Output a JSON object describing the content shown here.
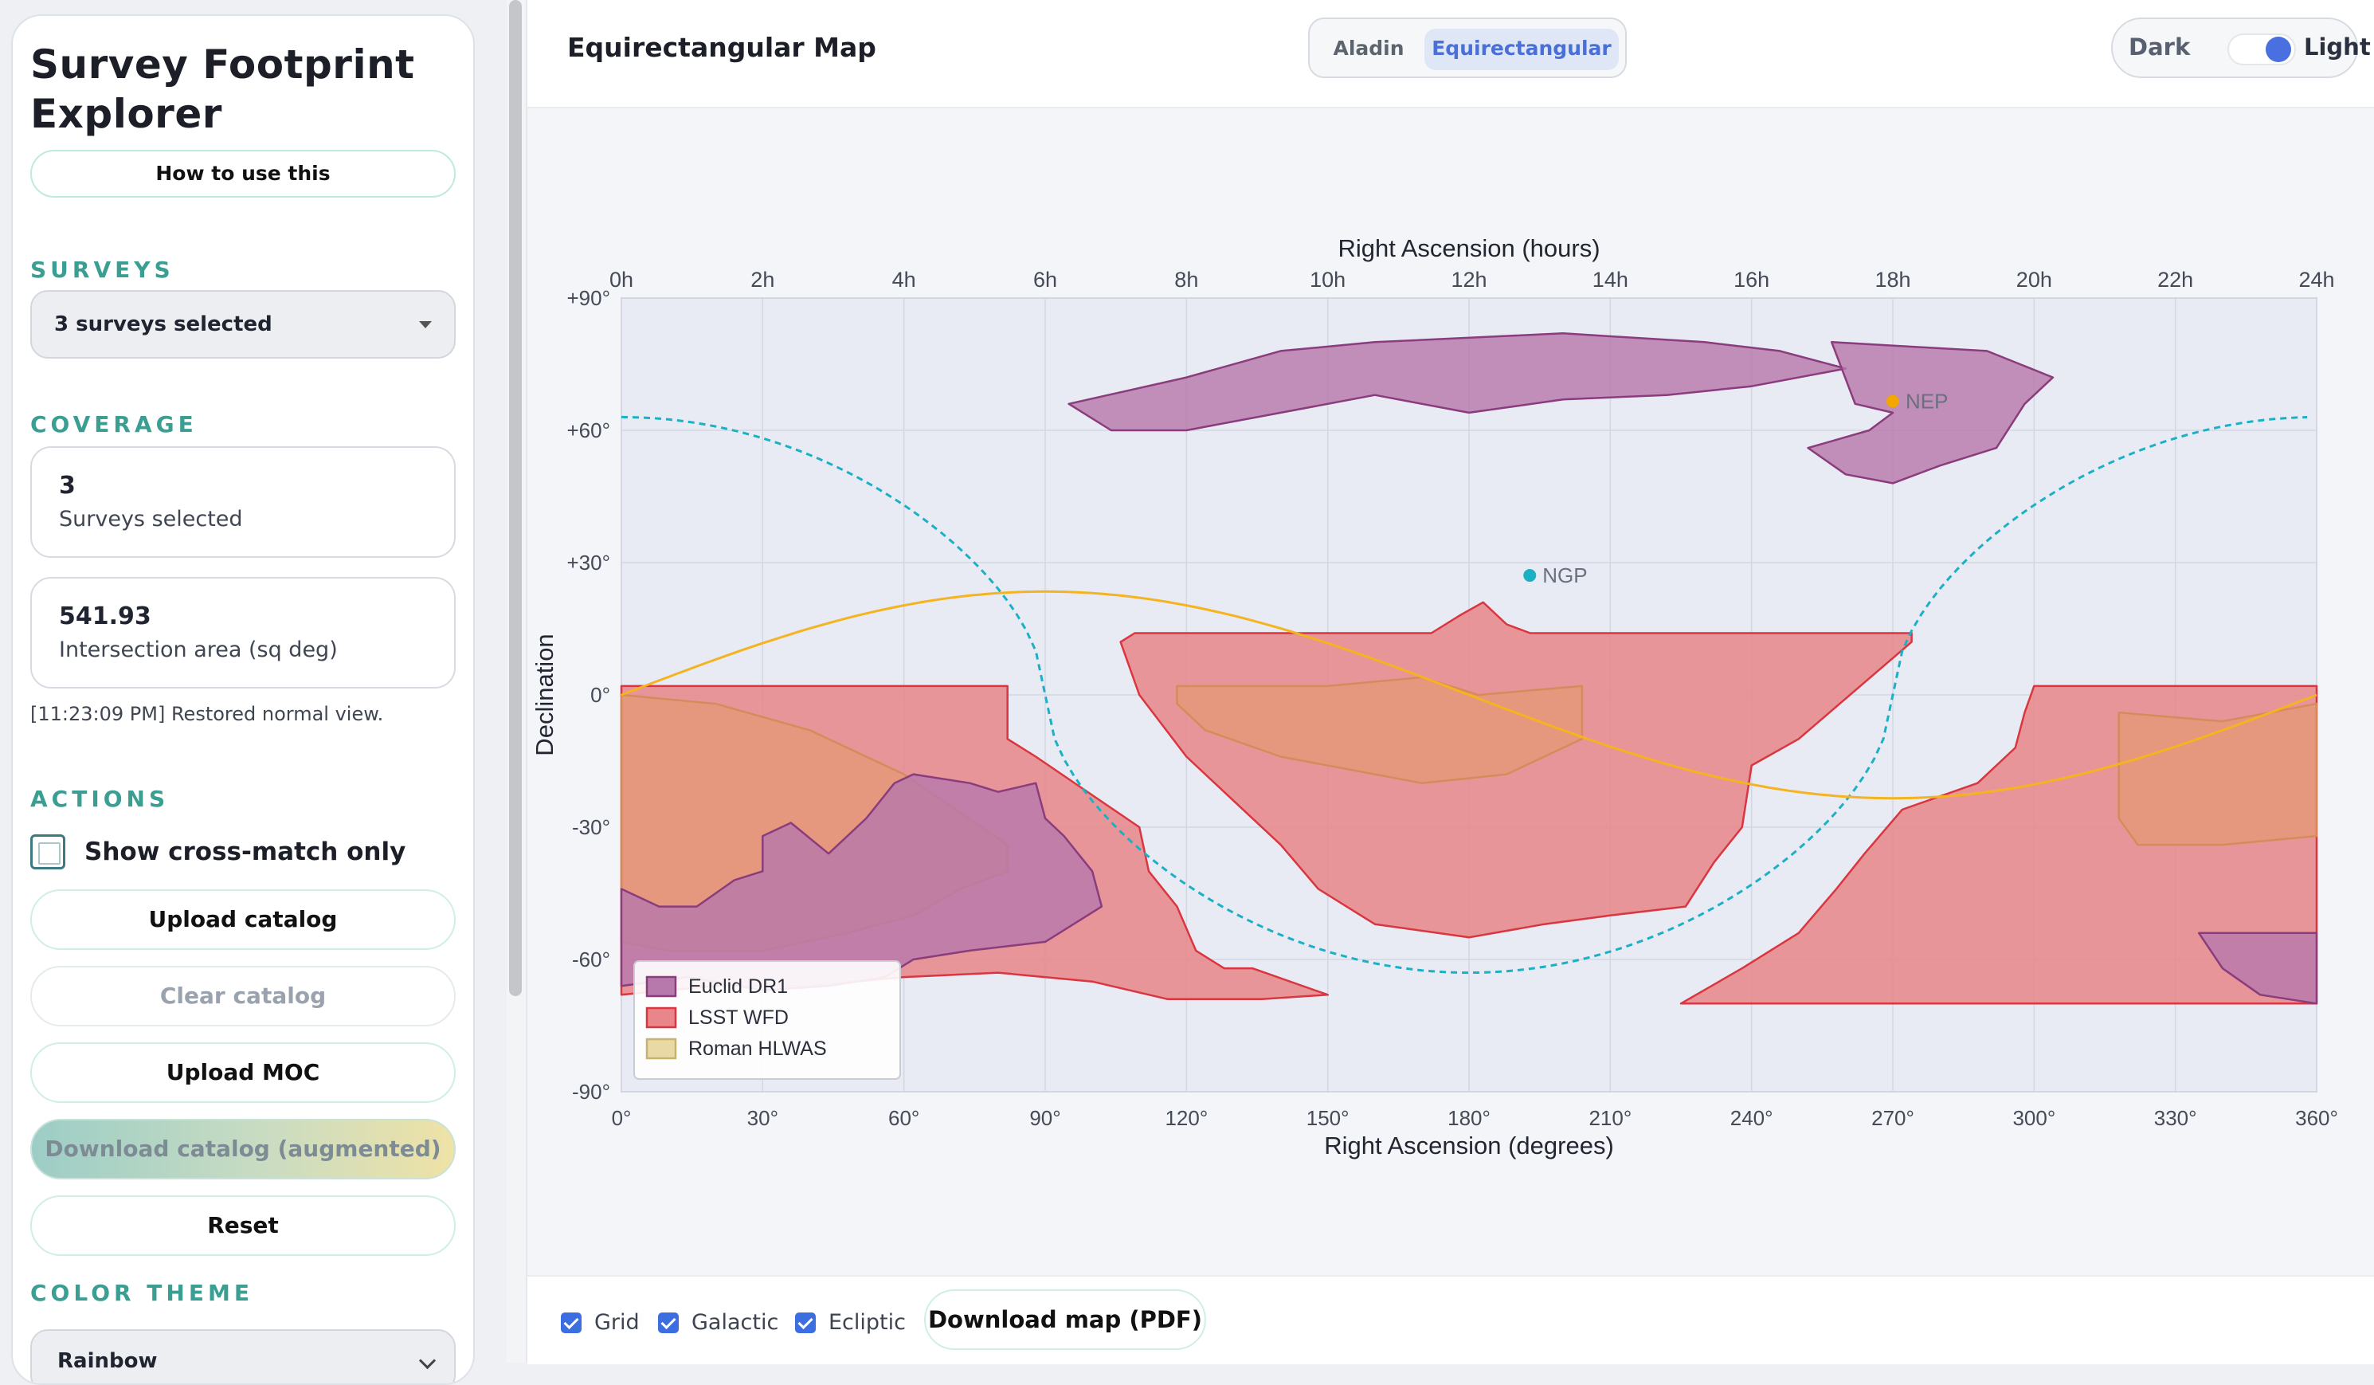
{
  "sidebar": {
    "title": "Survey Footprint Explorer",
    "help_button": "How to use this",
    "surveys_heading": "SURVEYS",
    "surveys_select": "3 surveys selected",
    "coverage_heading": "COVERAGE",
    "coverage_cards": [
      {
        "value": "3",
        "label": "Surveys selected"
      },
      {
        "value": "541.93",
        "label": "Intersection area (sq deg)"
      }
    ],
    "log_message": "[11:23:09 PM] Restored normal view.",
    "actions_heading": "ACTIONS",
    "crossmatch_label": "Show cross-match only",
    "crossmatch_checked": false,
    "buttons": {
      "upload_catalog": "Upload catalog",
      "clear_catalog": "Clear catalog",
      "upload_moc": "Upload MOC",
      "download_catalog": "Download catalog (augmented)",
      "reset": "Reset"
    },
    "color_theme_heading": "COLOR THEME",
    "color_theme_value": "Rainbow"
  },
  "main": {
    "title": "Equirectangular Map",
    "view_tabs": [
      {
        "label": "Aladin",
        "active": false
      },
      {
        "label": "Equirectangular",
        "active": true
      }
    ],
    "theme_toggle": {
      "dark": "Dark",
      "light": "Light",
      "state": "Light"
    },
    "bottom": {
      "grid": "Grid",
      "galactic": "Galactic",
      "ecliptic": "Ecliptic",
      "grid_checked": true,
      "galactic_checked": true,
      "ecliptic_checked": true,
      "download_map": "Download map (PDF)"
    }
  },
  "chart_data": {
    "type": "map",
    "top_axis_label": "Right Ascension (hours)",
    "xlabel": "Right Ascension (degrees)",
    "ylabel": "Declination",
    "xlim": [
      0,
      360
    ],
    "ylim": [
      -90,
      90
    ],
    "x_ticks": [
      "0°",
      "30°",
      "60°",
      "90°",
      "120°",
      "150°",
      "180°",
      "210°",
      "240°",
      "270°",
      "300°",
      "330°",
      "360°"
    ],
    "x_tick_values": [
      0,
      30,
      60,
      90,
      120,
      150,
      180,
      210,
      240,
      270,
      300,
      330,
      360
    ],
    "hour_ticks": [
      "0h",
      "2h",
      "4h",
      "6h",
      "8h",
      "10h",
      "12h",
      "14h",
      "16h",
      "18h",
      "20h",
      "22h",
      "24h"
    ],
    "hour_tick_values": [
      0,
      30,
      60,
      90,
      120,
      150,
      180,
      210,
      240,
      270,
      300,
      330,
      360
    ],
    "y_ticks": [
      "+90°",
      "+60°",
      "+30°",
      "0°",
      "-30°",
      "-60°",
      "-90°"
    ],
    "y_tick_values": [
      90,
      60,
      30,
      0,
      -30,
      -60,
      -90
    ],
    "legend": [
      {
        "name": "Euclid DR1",
        "fill": "#b779ab",
        "stroke": "#8a3c7c"
      },
      {
        "name": "LSST WFD",
        "fill": "#e8868a",
        "stroke": "#d9363f"
      },
      {
        "name": "Roman HLWAS",
        "fill": "#e9d9a4",
        "stroke": "#c8b272"
      }
    ],
    "legend_position": "bottom-left",
    "grid": true,
    "points": [
      {
        "name": "NGP",
        "ra": 192.9,
        "dec": 27.1,
        "color": "#1bb0c4"
      },
      {
        "name": "NEP",
        "ra": 270.0,
        "dec": 66.6,
        "color": "#f2a800"
      }
    ],
    "galactic_plane_color": "#1bb0c4",
    "ecliptic_color": "#f5b320",
    "survey_polygons": [
      {
        "survey": "LSST WFD",
        "points": [
          [
            0,
            2
          ],
          [
            82,
            2
          ],
          [
            82,
            -10
          ],
          [
            88,
            -14
          ],
          [
            110,
            -30
          ],
          [
            112,
            -40
          ],
          [
            118,
            -48
          ],
          [
            122,
            -58
          ],
          [
            128,
            -62
          ],
          [
            134,
            -62
          ],
          [
            150,
            -68
          ],
          [
            136,
            -69
          ],
          [
            116,
            -69
          ],
          [
            100,
            -65
          ],
          [
            80,
            -63
          ],
          [
            60,
            -64
          ],
          [
            40,
            -66
          ],
          [
            20,
            -66
          ],
          [
            0,
            -68
          ]
        ]
      },
      {
        "survey": "LSST WFD",
        "points": [
          [
            109,
            14
          ],
          [
            172,
            14
          ],
          [
            178,
            18
          ],
          [
            183,
            21
          ],
          [
            188,
            16
          ],
          [
            193,
            14
          ],
          [
            274,
            14
          ],
          [
            274,
            12
          ],
          [
            250,
            -10
          ],
          [
            240,
            -16
          ],
          [
            238,
            -30
          ],
          [
            232,
            -38
          ],
          [
            226,
            -48
          ],
          [
            210,
            -50
          ],
          [
            196,
            -52
          ],
          [
            180,
            -55
          ],
          [
            160,
            -52
          ],
          [
            148,
            -44
          ],
          [
            140,
            -34
          ],
          [
            130,
            -24
          ],
          [
            120,
            -14
          ],
          [
            110,
            0
          ],
          [
            106,
            12
          ]
        ]
      },
      {
        "survey": "LSST WFD",
        "points": [
          [
            300,
            2
          ],
          [
            360,
            2
          ],
          [
            360,
            -70
          ],
          [
            225,
            -70
          ],
          [
            238,
            -62
          ],
          [
            250,
            -54
          ],
          [
            258,
            -44
          ],
          [
            264,
            -36
          ],
          [
            272,
            -26
          ],
          [
            288,
            -20
          ],
          [
            296,
            -12
          ],
          [
            298,
            -4
          ]
        ]
      },
      {
        "survey": "Roman HLWAS",
        "points": [
          [
            0,
            0
          ],
          [
            20,
            -2
          ],
          [
            40,
            -8
          ],
          [
            60,
            -18
          ],
          [
            82,
            -34
          ],
          [
            82,
            -40
          ],
          [
            72,
            -44
          ],
          [
            62,
            -50
          ],
          [
            48,
            -54
          ],
          [
            30,
            -58
          ],
          [
            10,
            -58
          ],
          [
            0,
            -56
          ]
        ]
      },
      {
        "survey": "Roman HLWAS",
        "points": [
          [
            118,
            2
          ],
          [
            150,
            2
          ],
          [
            170,
            4
          ],
          [
            182,
            0
          ],
          [
            204,
            2
          ],
          [
            204,
            -10
          ],
          [
            188,
            -18
          ],
          [
            170,
            -20
          ],
          [
            140,
            -14
          ],
          [
            124,
            -8
          ],
          [
            118,
            -2
          ]
        ]
      },
      {
        "survey": "Roman HLWAS",
        "points": [
          [
            318,
            -4
          ],
          [
            340,
            -6
          ],
          [
            360,
            -2
          ],
          [
            360,
            -32
          ],
          [
            340,
            -34
          ],
          [
            322,
            -34
          ],
          [
            318,
            -28
          ]
        ]
      },
      {
        "survey": "Euclid DR1",
        "points": [
          [
            30,
            -32
          ],
          [
            36,
            -29
          ],
          [
            44,
            -36
          ],
          [
            52,
            -28
          ],
          [
            58,
            -20
          ],
          [
            62,
            -18
          ],
          [
            74,
            -20
          ],
          [
            80,
            -22
          ],
          [
            88,
            -20
          ],
          [
            90,
            -28
          ],
          [
            94,
            -32
          ],
          [
            100,
            -40
          ],
          [
            102,
            -48
          ],
          [
            90,
            -56
          ],
          [
            74,
            -58
          ],
          [
            62,
            -60
          ],
          [
            56,
            -64
          ],
          [
            44,
            -66
          ],
          [
            30,
            -67
          ],
          [
            14,
            -64
          ],
          [
            0,
            -66
          ],
          [
            0,
            -44
          ],
          [
            8,
            -48
          ],
          [
            16,
            -48
          ],
          [
            24,
            -42
          ],
          [
            30,
            -40
          ]
        ]
      },
      {
        "survey": "Euclid DR1",
        "points": [
          [
            335,
            -54
          ],
          [
            360,
            -54
          ],
          [
            360,
            -70
          ],
          [
            348,
            -68
          ],
          [
            340,
            -62
          ]
        ]
      },
      {
        "survey": "Euclid DR1",
        "points": [
          [
            95,
            66
          ],
          [
            120,
            72
          ],
          [
            140,
            78
          ],
          [
            160,
            80
          ],
          [
            200,
            82
          ],
          [
            230,
            80
          ],
          [
            246,
            78
          ],
          [
            260,
            74
          ],
          [
            240,
            70
          ],
          [
            222,
            68
          ],
          [
            200,
            67
          ],
          [
            180,
            64
          ],
          [
            160,
            68
          ],
          [
            140,
            64
          ],
          [
            120,
            60
          ],
          [
            104,
            60
          ]
        ]
      },
      {
        "survey": "Euclid DR1",
        "points": [
          [
            257,
            80
          ],
          [
            290,
            78
          ],
          [
            304,
            72
          ],
          [
            298,
            66
          ],
          [
            292,
            56
          ],
          [
            280,
            52
          ],
          [
            270,
            48
          ],
          [
            260,
            50
          ],
          [
            252,
            56
          ],
          [
            265,
            60
          ],
          [
            270,
            64
          ],
          [
            262,
            66
          ]
        ]
      }
    ]
  }
}
